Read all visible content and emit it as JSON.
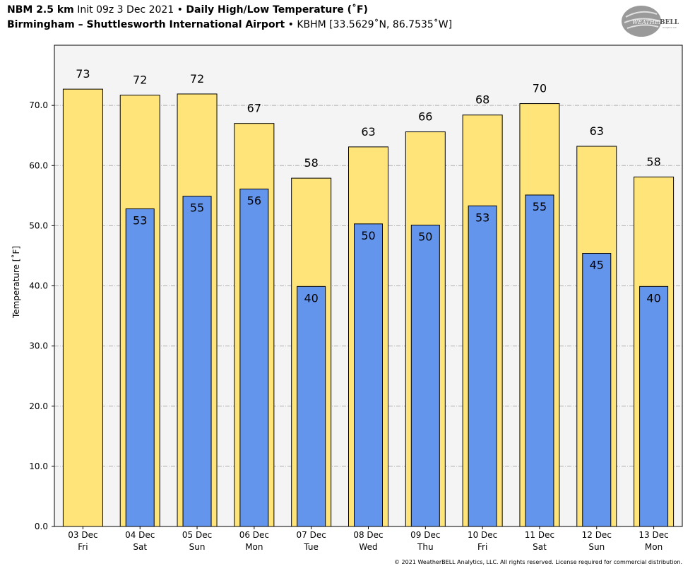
{
  "header": {
    "model": "NBM 2.5 km",
    "init": "Init 09z 3 Dec 2021",
    "bullet": "•",
    "product": "Daily High/Low Temperature (˚F)",
    "location": "Birmingham – Shuttlesworth International Airport",
    "station": "KBHM [33.5629˚N, 86.7535˚W]"
  },
  "logo": {
    "text_top": "WEATHER",
    "text_brand": "BELL",
    "text_sub": "Analytics LLC"
  },
  "footer": {
    "copyright": "© 2021 WeatherBELL Analytics, LLC. All rights reserved. License required for commercial distribution."
  },
  "colors": {
    "high": "#ffe47a",
    "low": "#6495ed",
    "plot_bg": "#f4f4f4",
    "grid": "#b0b0b0"
  },
  "chart_data": {
    "type": "bar",
    "xlabel": "",
    "ylabel": "Temperature [˚F]",
    "ylim": [
      0,
      80
    ],
    "yticks": [
      0,
      10,
      20,
      30,
      40,
      50,
      60,
      70
    ],
    "ytick_labels": [
      "0.0",
      "10.0",
      "20.0",
      "30.0",
      "40.0",
      "50.0",
      "60.0",
      "70.0"
    ],
    "grid": "horizontal dashed",
    "categories": [
      {
        "date": "03 Dec",
        "day": "Fri"
      },
      {
        "date": "04 Dec",
        "day": "Sat"
      },
      {
        "date": "05 Dec",
        "day": "Sun"
      },
      {
        "date": "06 Dec",
        "day": "Mon"
      },
      {
        "date": "07 Dec",
        "day": "Tue"
      },
      {
        "date": "08 Dec",
        "day": "Wed"
      },
      {
        "date": "09 Dec",
        "day": "Thu"
      },
      {
        "date": "10 Dec",
        "day": "Fri"
      },
      {
        "date": "11 Dec",
        "day": "Sat"
      },
      {
        "date": "12 Dec",
        "day": "Sun"
      },
      {
        "date": "13 Dec",
        "day": "Mon"
      }
    ],
    "series": [
      {
        "key": "high",
        "values": [
          72.7,
          71.7,
          71.9,
          67.0,
          57.9,
          63.1,
          65.6,
          68.4,
          70.3,
          63.2,
          58.1
        ],
        "labels": [
          "73",
          "72",
          "72",
          "67",
          "58",
          "63",
          "66",
          "68",
          "70",
          "63",
          "58"
        ]
      },
      {
        "key": "low",
        "values": [
          null,
          52.8,
          54.9,
          56.1,
          39.9,
          50.3,
          50.1,
          53.3,
          55.1,
          45.4,
          39.9
        ],
        "labels": [
          "",
          "53",
          "55",
          "56",
          "40",
          "50",
          "50",
          "53",
          "55",
          "45",
          "40"
        ]
      }
    ]
  }
}
